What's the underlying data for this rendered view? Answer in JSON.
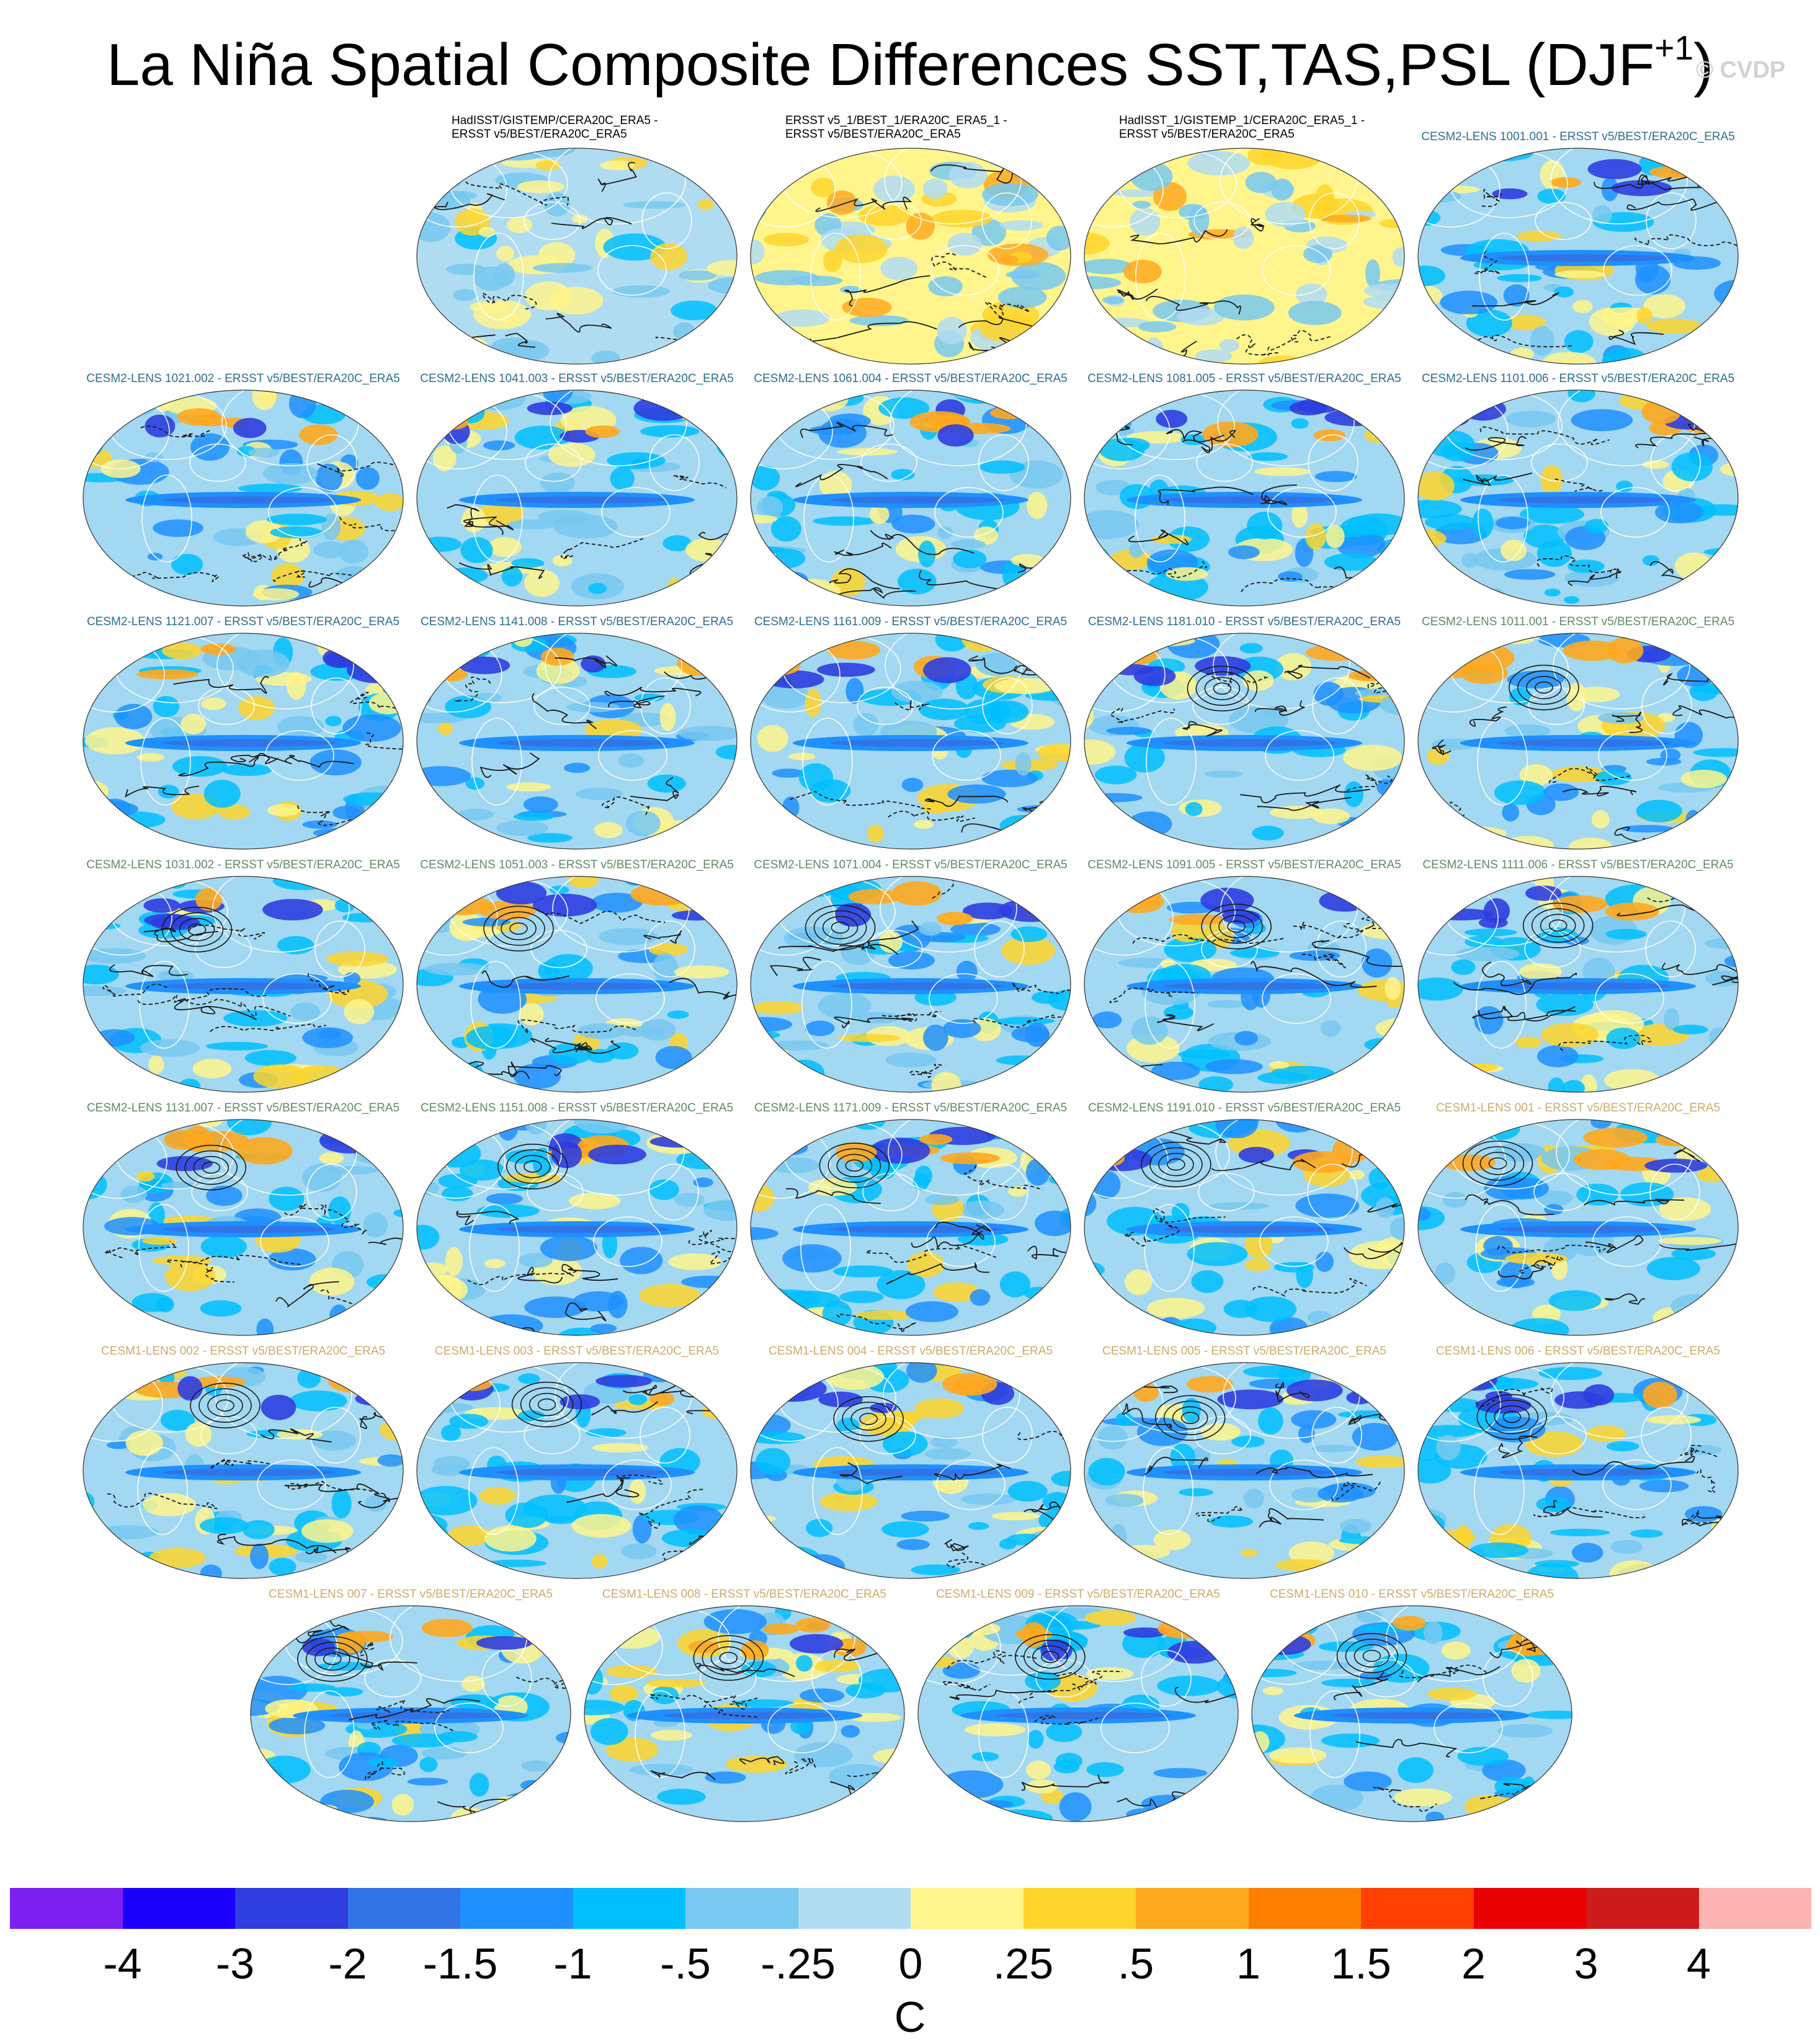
{
  "title": {
    "main": "La Niña Spatial Composite Differences SST,TAS,PSL (DJF",
    "superscript": "+1",
    "close": ")"
  },
  "watermark": "© CVDP",
  "colors": {
    "cesm2_blue_group": "#2a6f8e",
    "cesm2_green_group": "#5e8a66",
    "cesm1_group": "#c9ad6a",
    "observation": "#000000",
    "ocean_base": "#a3d8f2",
    "coastline": "#ffffff",
    "contour": "#1a1a1a"
  },
  "panels": [
    {
      "title_lines": [
        "HadISST/GISTEMP/CERA20C_ERA5 -",
        "ERSST v5/BEST/ERA20C_ERA5"
      ],
      "group": "observation",
      "pattern": "weak"
    },
    {
      "title_lines": [
        "ERSST v5_1/BEST_1/ERA20C_ERA5_1 -",
        "ERSST v5/BEST/ERA20C_ERA5"
      ],
      "group": "observation",
      "pattern": "warm"
    },
    {
      "title_lines": [
        "HadISST_1/GISTEMP_1/CERA20C_ERA5_1 -",
        "ERSST v5/BEST/ERA20C_ERA5"
      ],
      "group": "observation",
      "pattern": "warm"
    },
    {
      "title_lines": [
        "CESM2-LENS 1001.001 - ERSST v5/BEST/ERA20C_ERA5"
      ],
      "group": "cesm2_blue_group",
      "pattern": "cool"
    },
    {
      "title_lines": [
        "CESM2-LENS 1021.002 - ERSST v5/BEST/ERA20C_ERA5"
      ],
      "group": "cesm2_blue_group",
      "pattern": "cool"
    },
    {
      "title_lines": [
        "CESM2-LENS 1041.003 - ERSST v5/BEST/ERA20C_ERA5"
      ],
      "group": "cesm2_blue_group",
      "pattern": "cool"
    },
    {
      "title_lines": [
        "CESM2-LENS 1061.004 - ERSST v5/BEST/ERA20C_ERA5"
      ],
      "group": "cesm2_blue_group",
      "pattern": "cool"
    },
    {
      "title_lines": [
        "CESM2-LENS 1081.005 - ERSST v5/BEST/ERA20C_ERA5"
      ],
      "group": "cesm2_blue_group",
      "pattern": "cool"
    },
    {
      "title_lines": [
        "CESM2-LENS 1101.006 - ERSST v5/BEST/ERA20C_ERA5"
      ],
      "group": "cesm2_blue_group",
      "pattern": "cool"
    },
    {
      "title_lines": [
        "CESM2-LENS 1121.007 - ERSST v5/BEST/ERA20C_ERA5"
      ],
      "group": "cesm2_blue_group",
      "pattern": "cool"
    },
    {
      "title_lines": [
        "CESM2-LENS 1141.008 - ERSST v5/BEST/ERA20C_ERA5"
      ],
      "group": "cesm2_blue_group",
      "pattern": "cool"
    },
    {
      "title_lines": [
        "CESM2-LENS 1161.009 - ERSST v5/BEST/ERA20C_ERA5"
      ],
      "group": "cesm2_blue_group",
      "pattern": "cool"
    },
    {
      "title_lines": [
        "CESM2-LENS 1181.010 - ERSST v5/BEST/ERA20C_ERA5"
      ],
      "group": "cesm2_blue_group",
      "pattern": "cool"
    },
    {
      "title_lines": [
        "CESM2-LENS 1011.001 - ERSST v5/BEST/ERA20C_ERA5"
      ],
      "group": "cesm2_green_group",
      "pattern": "cool"
    },
    {
      "title_lines": [
        "CESM2-LENS 1031.002 - ERSST v5/BEST/ERA20C_ERA5"
      ],
      "group": "cesm2_green_group",
      "pattern": "cool"
    },
    {
      "title_lines": [
        "CESM2-LENS 1051.003 - ERSST v5/BEST/ERA20C_ERA5"
      ],
      "group": "cesm2_green_group",
      "pattern": "cool"
    },
    {
      "title_lines": [
        "CESM2-LENS 1071.004 - ERSST v5/BEST/ERA20C_ERA5"
      ],
      "group": "cesm2_green_group",
      "pattern": "cool"
    },
    {
      "title_lines": [
        "CESM2-LENS 1091.005 - ERSST v5/BEST/ERA20C_ERA5"
      ],
      "group": "cesm2_green_group",
      "pattern": "cool"
    },
    {
      "title_lines": [
        "CESM2-LENS 1111.006 - ERSST v5/BEST/ERA20C_ERA5"
      ],
      "group": "cesm2_green_group",
      "pattern": "cool"
    },
    {
      "title_lines": [
        "CESM2-LENS 1131.007 - ERSST v5/BEST/ERA20C_ERA5"
      ],
      "group": "cesm2_green_group",
      "pattern": "cool"
    },
    {
      "title_lines": [
        "CESM2-LENS 1151.008 - ERSST v5/BEST/ERA20C_ERA5"
      ],
      "group": "cesm2_green_group",
      "pattern": "cool"
    },
    {
      "title_lines": [
        "CESM2-LENS 1171.009 - ERSST v5/BEST/ERA20C_ERA5"
      ],
      "group": "cesm2_green_group",
      "pattern": "cool"
    },
    {
      "title_lines": [
        "CESM2-LENS 1191.010 - ERSST v5/BEST/ERA20C_ERA5"
      ],
      "group": "cesm2_green_group",
      "pattern": "cool"
    },
    {
      "title_lines": [
        "CESM1-LENS 001 - ERSST v5/BEST/ERA20C_ERA5"
      ],
      "group": "cesm1_group",
      "pattern": "cool"
    },
    {
      "title_lines": [
        "CESM1-LENS 002 - ERSST v5/BEST/ERA20C_ERA5"
      ],
      "group": "cesm1_group",
      "pattern": "cool"
    },
    {
      "title_lines": [
        "CESM1-LENS 003 - ERSST v5/BEST/ERA20C_ERA5"
      ],
      "group": "cesm1_group",
      "pattern": "cool"
    },
    {
      "title_lines": [
        "CESM1-LENS 004 - ERSST v5/BEST/ERA20C_ERA5"
      ],
      "group": "cesm1_group",
      "pattern": "cool"
    },
    {
      "title_lines": [
        "CESM1-LENS 005 - ERSST v5/BEST/ERA20C_ERA5"
      ],
      "group": "cesm1_group",
      "pattern": "cool"
    },
    {
      "title_lines": [
        "CESM1-LENS 006 - ERSST v5/BEST/ERA20C_ERA5"
      ],
      "group": "cesm1_group",
      "pattern": "cool"
    },
    {
      "title_lines": [
        "CESM1-LENS 007 - ERSST v5/BEST/ERA20C_ERA5"
      ],
      "group": "cesm1_group",
      "pattern": "cool"
    },
    {
      "title_lines": [
        "CESM1-LENS 008 - ERSST v5/BEST/ERA20C_ERA5"
      ],
      "group": "cesm1_group",
      "pattern": "cool"
    },
    {
      "title_lines": [
        "CESM1-LENS 009 - ERSST v5/BEST/ERA20C_ERA5"
      ],
      "group": "cesm1_group",
      "pattern": "cool"
    },
    {
      "title_lines": [
        "CESM1-LENS 010 - ERSST v5/BEST/ERA20C_ERA5"
      ],
      "group": "cesm1_group",
      "pattern": "cool"
    }
  ],
  "legend": {
    "units": "C",
    "colors": [
      "#7b20f0",
      "#1a00fa",
      "#2e3ee0",
      "#3274e6",
      "#1e90ff",
      "#00bfff",
      "#78c8f0",
      "#b0dcf2",
      "#fff58c",
      "#ffd52c",
      "#ffa91e",
      "#ff7f00",
      "#ff4000",
      "#ea0000",
      "#cd1a1a",
      "#ffb4b4"
    ],
    "tick_labels": [
      "-4",
      "-3",
      "-2",
      "-1.5",
      "-1",
      "-.5",
      "-.25",
      "0",
      ".25",
      ".5",
      "1",
      "1.5",
      "2",
      "3",
      "4"
    ]
  }
}
